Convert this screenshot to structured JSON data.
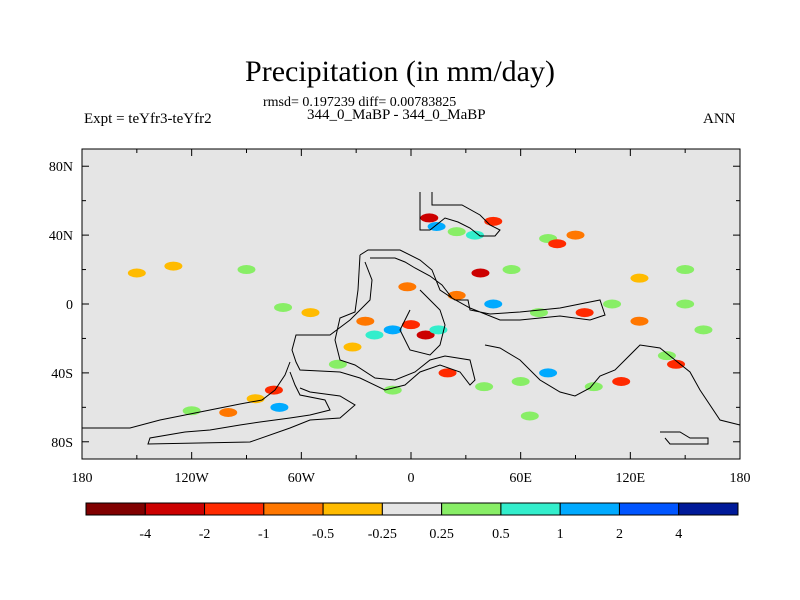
{
  "chart_data": {
    "type": "heatmap",
    "title": "Precipitation (in mm/day)",
    "stats": "rmsd= 0.197239 diff= 0.00783825",
    "subtitle": "344_0_MaBP - 344_0_MaBP",
    "left_label": "Expt = teYfr3-teYfr2",
    "right_label": "ANN",
    "projection": "cylindrical equidistant",
    "xlim": [
      -180,
      180
    ],
    "ylim": [
      -90,
      90
    ],
    "x_ticks": [
      {
        "value": -180,
        "label": "180"
      },
      {
        "value": -120,
        "label": "120W"
      },
      {
        "value": -60,
        "label": "60W"
      },
      {
        "value": 0,
        "label": "0"
      },
      {
        "value": 60,
        "label": "60E"
      },
      {
        "value": 120,
        "label": "120E"
      },
      {
        "value": 180,
        "label": "180"
      }
    ],
    "y_ticks": [
      {
        "value": 80,
        "label": "80N"
      },
      {
        "value": 40,
        "label": "40N"
      },
      {
        "value": 0,
        "label": "0"
      },
      {
        "value": -40,
        "label": "40S"
      },
      {
        "value": -80,
        "label": "80S"
      }
    ],
    "colorbar": {
      "colors": [
        "#800000",
        "#cc0000",
        "#ff2a00",
        "#ff7700",
        "#ffbb00",
        "#e5e5e5",
        "#88ee66",
        "#33eecc",
        "#00aaff",
        "#0055ff",
        "#001a99"
      ],
      "labels": [
        "-4",
        "-2",
        "-1",
        "-0.5",
        "-0.25",
        "0.25",
        "0.5",
        "1",
        "2",
        "4"
      ]
    },
    "anomalies": [
      {
        "lon": -130,
        "lat": 22,
        "class": 4
      },
      {
        "lon": -90,
        "lat": 20,
        "class": 6
      },
      {
        "lon": -150,
        "lat": 18,
        "class": 4
      },
      {
        "lon": -70,
        "lat": -2,
        "class": 6
      },
      {
        "lon": -55,
        "lat": -5,
        "class": 4
      },
      {
        "lon": -40,
        "lat": -35,
        "class": 6
      },
      {
        "lon": -32,
        "lat": -25,
        "class": 4
      },
      {
        "lon": -25,
        "lat": -10,
        "class": 3
      },
      {
        "lon": -20,
        "lat": -18,
        "class": 7
      },
      {
        "lon": -10,
        "lat": -15,
        "class": 8
      },
      {
        "lon": 0,
        "lat": -12,
        "class": 2
      },
      {
        "lon": 8,
        "lat": -18,
        "class": 1
      },
      {
        "lon": 15,
        "lat": -15,
        "class": 7
      },
      {
        "lon": -2,
        "lat": 10,
        "class": 3
      },
      {
        "lon": 10,
        "lat": 50,
        "class": 1
      },
      {
        "lon": 14,
        "lat": 45,
        "class": 8
      },
      {
        "lon": 25,
        "lat": 42,
        "class": 6
      },
      {
        "lon": 35,
        "lat": 40,
        "class": 7
      },
      {
        "lon": 45,
        "lat": 48,
        "class": 2
      },
      {
        "lon": 75,
        "lat": 38,
        "class": 6
      },
      {
        "lon": 80,
        "lat": 35,
        "class": 2
      },
      {
        "lon": 90,
        "lat": 40,
        "class": 3
      },
      {
        "lon": 38,
        "lat": 18,
        "class": 1
      },
      {
        "lon": 55,
        "lat": 20,
        "class": 6
      },
      {
        "lon": 25,
        "lat": 5,
        "class": 3
      },
      {
        "lon": 45,
        "lat": 0,
        "class": 8
      },
      {
        "lon": 70,
        "lat": -5,
        "class": 6
      },
      {
        "lon": 95,
        "lat": -5,
        "class": 2
      },
      {
        "lon": 110,
        "lat": 0,
        "class": 6
      },
      {
        "lon": 125,
        "lat": -10,
        "class": 3
      },
      {
        "lon": 150,
        "lat": 0,
        "class": 6
      },
      {
        "lon": 160,
        "lat": -15,
        "class": 6
      },
      {
        "lon": 125,
        "lat": 15,
        "class": 4
      },
      {
        "lon": 150,
        "lat": 20,
        "class": 6
      },
      {
        "lon": 140,
        "lat": -30,
        "class": 6
      },
      {
        "lon": 145,
        "lat": -35,
        "class": 2
      },
      {
        "lon": 60,
        "lat": -45,
        "class": 6
      },
      {
        "lon": 75,
        "lat": -40,
        "class": 8
      },
      {
        "lon": 65,
        "lat": -65,
        "class": 6
      },
      {
        "lon": -75,
        "lat": -50,
        "class": 2
      },
      {
        "lon": -72,
        "lat": -60,
        "class": 8
      },
      {
        "lon": -85,
        "lat": -55,
        "class": 4
      },
      {
        "lon": -100,
        "lat": -63,
        "class": 3
      },
      {
        "lon": -120,
        "lat": -62,
        "class": 6
      },
      {
        "lon": -10,
        "lat": -50,
        "class": 6
      },
      {
        "lon": 40,
        "lat": -48,
        "class": 6
      },
      {
        "lon": 20,
        "lat": -40,
        "class": 2
      },
      {
        "lon": 100,
        "lat": -48,
        "class": 6
      },
      {
        "lon": 115,
        "lat": -45,
        "class": 2
      }
    ]
  }
}
